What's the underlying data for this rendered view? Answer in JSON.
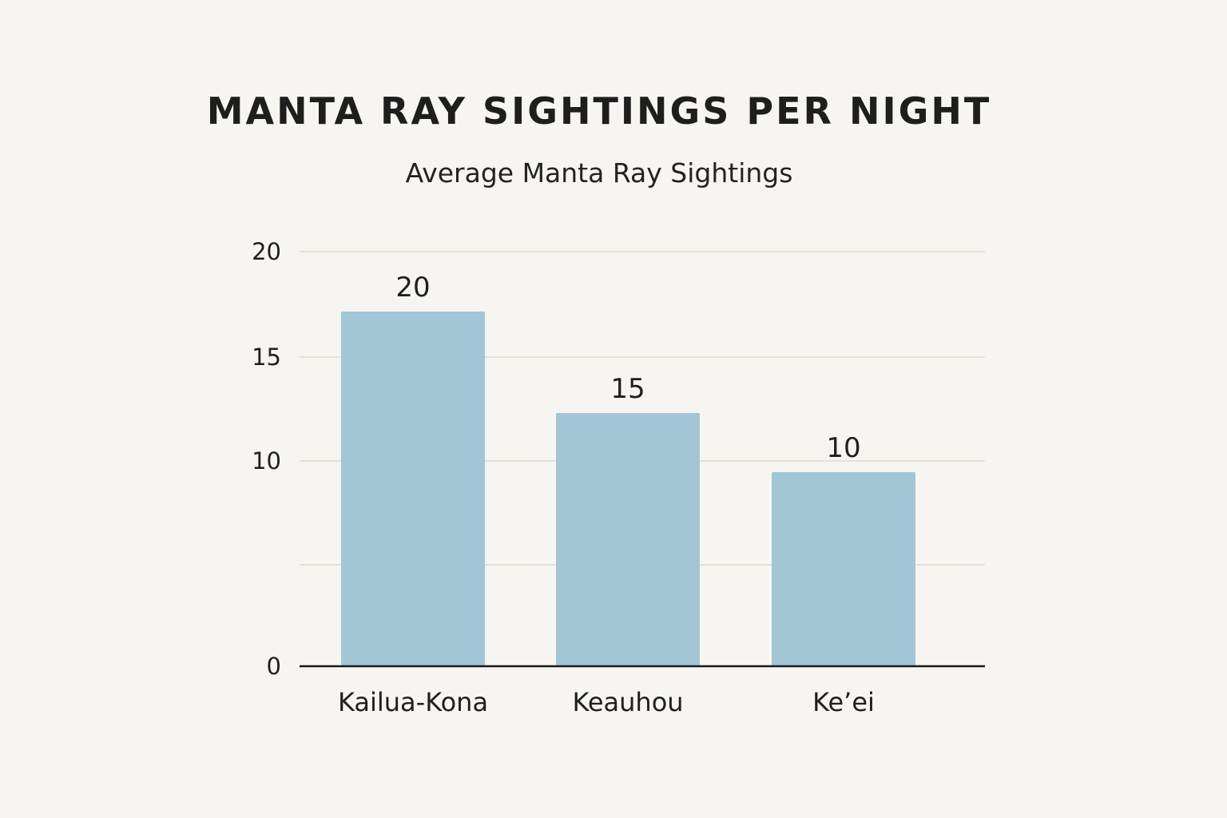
{
  "chart_data": {
    "type": "bar",
    "title": "MANTA RAY SIGHTINGS PER NIGHT",
    "subtitle": "Average Manta Ray Sightings",
    "xlabel": "",
    "ylabel": "",
    "categories": [
      "Kailua-Kona",
      "Keauhou",
      "Ke’ei"
    ],
    "values": [
      20,
      15,
      10
    ],
    "data_labels": [
      "20",
      "15",
      "10"
    ],
    "y_ticks": [
      "0",
      "10",
      "15",
      "20"
    ],
    "grid": true,
    "legend": "none",
    "bar_color": "#a2c6d5",
    "grid_color": "#e2e1dc",
    "axis_color": "#1a1a1a"
  }
}
